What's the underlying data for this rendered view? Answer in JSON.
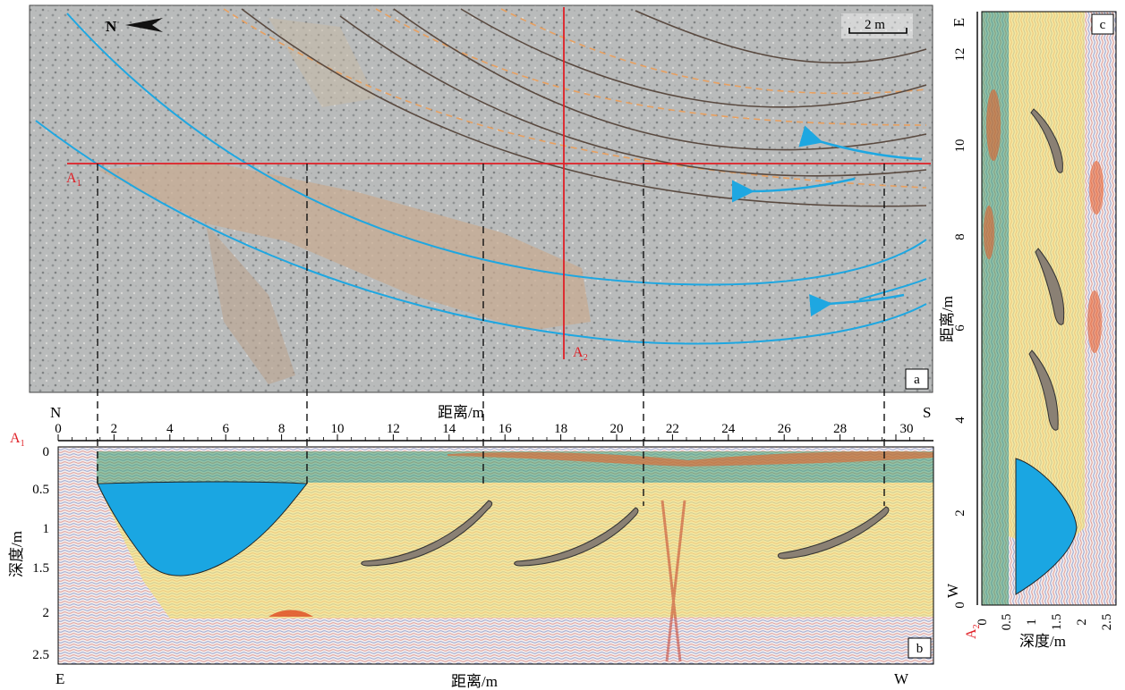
{
  "panel_a": {
    "label": "a",
    "north_label": "N",
    "scale_label": "2 m",
    "profile_start": "A",
    "profile_start_sub": "1",
    "profile_end": "A",
    "profile_end_sub": "2",
    "colors": {
      "blue_line": "#1ea7e1",
      "dark_line": "#5a4a40",
      "orange_dash": "#e8a060",
      "profile_line": "#e01f26"
    }
  },
  "panel_b": {
    "label": "b",
    "top_axis_title": "距离/m",
    "bottom_axis_title": "距离/m",
    "y_axis_title": "深度/m",
    "profile_label": "A",
    "profile_label_sub": "1",
    "left_top": "N",
    "right_top": "S",
    "left_bottom": "E",
    "right_bottom": "W",
    "x_ticks": [
      "0",
      "2",
      "4",
      "6",
      "8",
      "10",
      "12",
      "14",
      "16",
      "18",
      "20",
      "22",
      "24",
      "26",
      "28",
      "30"
    ],
    "y_ticks": [
      "0",
      "0.5",
      "1",
      "1.5",
      "2",
      "2.5"
    ]
  },
  "panel_c": {
    "label": "c",
    "x_axis_title": "深度/m",
    "y_axis_title": "距离/m",
    "profile_label": "A",
    "profile_label_sub": "2",
    "top": "E",
    "bottom": "W",
    "x_ticks": [
      "0",
      "0.5",
      "1",
      "1.5",
      "2",
      "2.5"
    ],
    "y_ticks": [
      "0",
      "2",
      "4",
      "6",
      "8",
      "10",
      "12"
    ]
  }
}
